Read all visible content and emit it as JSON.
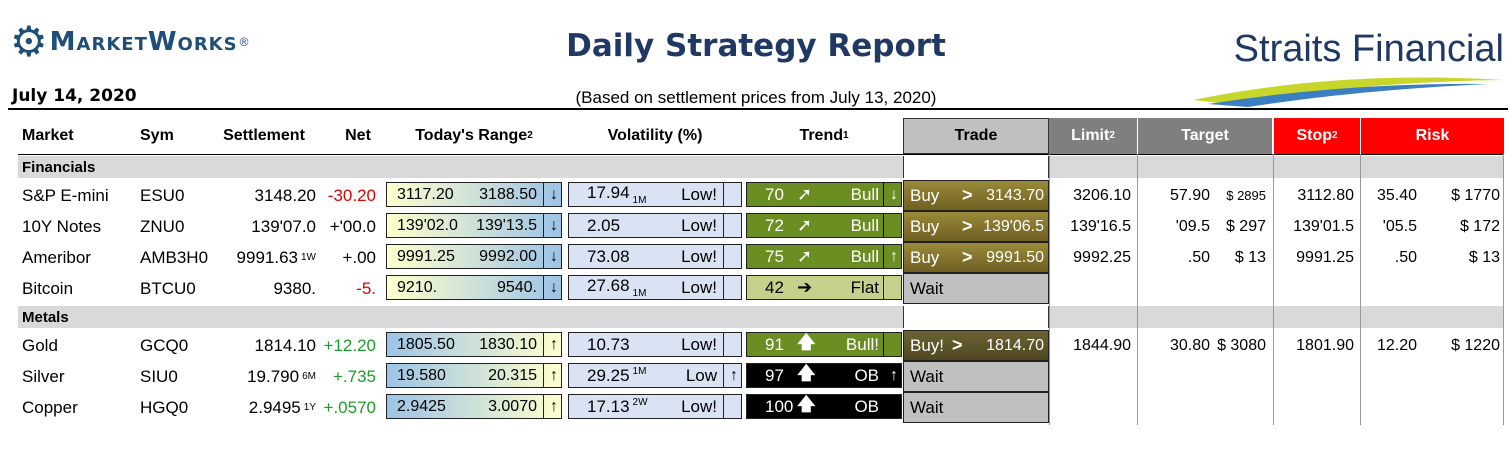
{
  "header": {
    "logo_text": "MarketWorks",
    "logo_reg": "®",
    "title": "Daily Strategy Report",
    "brand": "Straits Financial",
    "date": "July 14, 2020",
    "subtitle": "(Based on settlement prices from July 13, 2020)"
  },
  "colors": {
    "trade_fill": "#7f6a2b",
    "limit_header": "#7f7f7f",
    "stop_header": "#ff0000",
    "risk_header": "#ff0000",
    "trend_bull": "#6b8e23",
    "trend_flat": "#c7d08a",
    "trend_ob": "#000000"
  },
  "columns": {
    "market": "Market",
    "sym": "Sym",
    "settlement": "Settlement",
    "net": "Net",
    "range": "Today's Range",
    "range_sup": "2",
    "volatility": "Volatility (%)",
    "trend": "Trend",
    "trend_sup": "1",
    "trade": "Trade",
    "limit": "Limit",
    "limit_sup": "2",
    "target": "Target",
    "stop": "Stop",
    "stop_sup": "2",
    "risk": "Risk"
  },
  "sections": [
    {
      "name": "Financials",
      "rows": [
        {
          "market": "S&P E-mini",
          "sym": "ESU0",
          "settle": "3148.20",
          "settle_mark": "",
          "net": "-30.20",
          "net_class": "neg",
          "low": "3117.20",
          "high": "3188.50",
          "range_arrow": "↓",
          "vol": "17.94",
          "vol_mark": "1M",
          "vol_label": "Low!",
          "vol_arrow": "",
          "trend_val": "70",
          "trend_icon": "➚",
          "trend_label": "Bull",
          "trend_arrow": "↓",
          "trend_style": "bull",
          "trade_label": "Buy",
          "trade_op": ">",
          "trade_price": "3143.70",
          "trade_style": "buy",
          "limit": "3206.10",
          "tgt_pts": "57.90",
          "tgt_usd": "$ 2895",
          "stop": "3112.80",
          "risk_pts": "35.40",
          "risk_usd": "$ 1770"
        },
        {
          "market": "10Y Notes",
          "sym": "ZNU0",
          "settle": "139'07.0",
          "settle_mark": "",
          "net": "+'00.0",
          "net_class": "",
          "low": "139'02.0",
          "high": "139'13.5",
          "range_arrow": "↓",
          "vol": "2.05",
          "vol_mark": "",
          "vol_label": "Low!",
          "vol_arrow": "",
          "trend_val": "72",
          "trend_icon": "➚",
          "trend_label": "Bull",
          "trend_arrow": "",
          "trend_style": "bull",
          "trade_label": "Buy",
          "trade_op": ">",
          "trade_price": "139'06.5",
          "trade_style": "buy",
          "limit": "139'16.5",
          "tgt_pts": "'09.5",
          "tgt_usd": "$ 297",
          "stop": "139'01.5",
          "risk_pts": "'05.5",
          "risk_usd": "$ 172"
        },
        {
          "market": "Ameribor",
          "sym": "AMB3H0",
          "settle": "9991.63",
          "settle_mark": "1W",
          "net": "+.00",
          "net_class": "",
          "low": "9991.25",
          "high": "9992.00",
          "range_arrow": "↓",
          "vol": "73.08",
          "vol_mark": "",
          "vol_label": "Low!",
          "vol_arrow": "",
          "trend_val": "75",
          "trend_icon": "➚",
          "trend_label": "Bull",
          "trend_arrow": "↑",
          "trend_style": "bull",
          "trade_label": "Buy",
          "trade_op": ">",
          "trade_price": "9991.50",
          "trade_style": "buy",
          "limit": "9992.25",
          "tgt_pts": ".50",
          "tgt_usd": "$ 13",
          "stop": "9991.25",
          "risk_pts": ".50",
          "risk_usd": "$ 13"
        },
        {
          "market": "Bitcoin",
          "sym": "BTCU0",
          "settle": "9380.",
          "settle_mark": "",
          "net": "-5.",
          "net_class": "neg",
          "low": "9210.",
          "high": "9540.",
          "range_arrow": "↓",
          "vol": "27.68",
          "vol_mark": "1M",
          "vol_label": "Low!",
          "vol_arrow": "",
          "trend_val": "42",
          "trend_icon": "➔",
          "trend_label": "Flat",
          "trend_arrow": "",
          "trend_style": "flat",
          "trade_label": "Wait",
          "trade_op": "",
          "trade_price": "",
          "trade_style": "wait",
          "limit": "",
          "tgt_pts": "",
          "tgt_usd": "",
          "stop": "",
          "risk_pts": "",
          "risk_usd": ""
        }
      ]
    },
    {
      "name": "Metals",
      "rows": [
        {
          "market": "Gold",
          "sym": "GCQ0",
          "settle": "1814.10",
          "settle_mark": "",
          "net": "+12.20",
          "net_class": "pos",
          "low": "1805.50",
          "high": "1830.10",
          "range_arrow": "↑",
          "vol": "10.73",
          "vol_mark": "",
          "vol_label": "Low!",
          "vol_arrow": "",
          "trend_val": "91",
          "trend_icon": "🡅",
          "trend_label": "Bull!",
          "trend_arrow": "",
          "trend_style": "bull",
          "trade_label": "Buy!",
          "trade_op": ">",
          "trade_price": "1814.70",
          "trade_style": "buy2",
          "limit": "1844.90",
          "tgt_pts": "30.80",
          "tgt_usd": "$ 3080",
          "stop": "1801.90",
          "risk_pts": "12.20",
          "risk_usd": "$ 1220"
        },
        {
          "market": "Silver",
          "sym": "SIU0",
          "settle": "19.790",
          "settle_mark": "6M",
          "net": "+.735",
          "net_class": "pos",
          "low": "19.580",
          "high": "20.315",
          "range_arrow": "↑",
          "vol": "29.25",
          "vol_mark": "1M",
          "vol_label": "Low",
          "vol_arrow": "↑",
          "trend_val": "97",
          "trend_icon": "🡅",
          "trend_label": "OB",
          "trend_arrow": "↑",
          "trend_style": "ob",
          "trade_label": "Wait",
          "trade_op": "",
          "trade_price": "",
          "trade_style": "wait",
          "limit": "",
          "tgt_pts": "",
          "tgt_usd": "",
          "stop": "",
          "risk_pts": "",
          "risk_usd": ""
        },
        {
          "market": "Copper",
          "sym": "HGQ0",
          "settle": "2.9495",
          "settle_mark": "1Y",
          "net": "+.0570",
          "net_class": "pos",
          "low": "2.9425",
          "high": "3.0070",
          "range_arrow": "↑",
          "vol": "17.13",
          "vol_mark": "2W",
          "vol_label": "Low!",
          "vol_arrow": "",
          "trend_val": "100",
          "trend_icon": "🡅",
          "trend_label": "OB",
          "trend_arrow": "",
          "trend_style": "ob",
          "trade_label": "Wait",
          "trade_op": "",
          "trade_price": "",
          "trade_style": "wait",
          "limit": "",
          "tgt_pts": "",
          "tgt_usd": "",
          "stop": "",
          "risk_pts": "",
          "risk_usd": ""
        }
      ]
    }
  ]
}
